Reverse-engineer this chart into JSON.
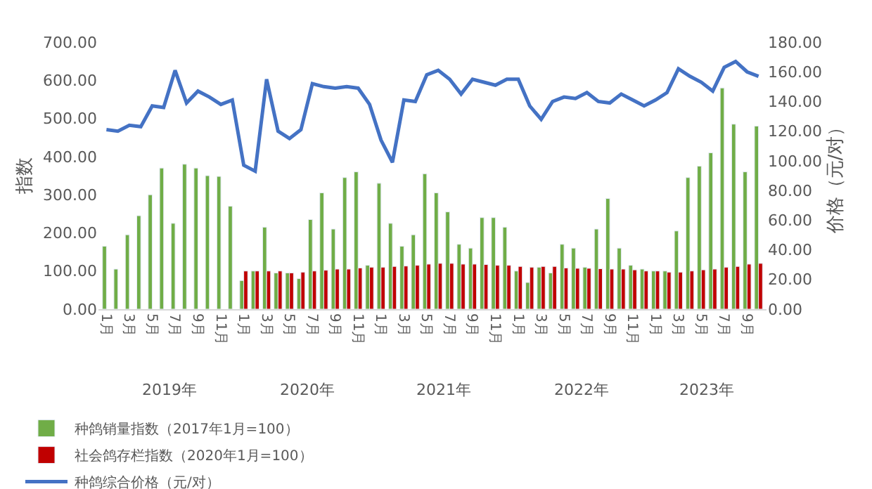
{
  "chart_data": {
    "type": "bar",
    "ylabel": "指数",
    "y2label": "价格（元/对）",
    "categories": [
      "1月",
      null,
      "3月",
      null,
      "5月",
      null,
      "7月",
      null,
      "9月",
      null,
      "11月",
      null,
      "1月",
      null,
      "3月",
      null,
      "5月",
      null,
      "7月",
      null,
      "9月",
      null,
      "11月",
      null,
      "1月",
      null,
      "3月",
      null,
      "5月",
      null,
      "7月",
      null,
      "9月",
      null,
      "11月",
      null,
      "1月",
      null,
      "3月",
      null,
      "5月",
      null,
      "7月",
      null,
      "9月",
      null,
      "11月",
      null,
      "1月",
      null,
      "3月",
      null,
      "5月",
      null,
      "7月",
      null,
      "9月",
      null
    ],
    "annotations": [
      "2019年",
      "2020年",
      "2021年",
      "2022年",
      "2023年"
    ],
    "series": [
      {
        "name": "种鸽销量指数（2017年1月=100）",
        "color": "#70ad47",
        "values": [
          165,
          105,
          195,
          245,
          300,
          370,
          225,
          380,
          370,
          350,
          348,
          270,
          75,
          100,
          215,
          95,
          95,
          80,
          235,
          305,
          210,
          345,
          360,
          115,
          330,
          225,
          165,
          195,
          355,
          305,
          255,
          170,
          160,
          240,
          240,
          215,
          100,
          70,
          110,
          95,
          170,
          160,
          110,
          210,
          290,
          160,
          115,
          105,
          100,
          100,
          205,
          345,
          375,
          410,
          580,
          485,
          360,
          480
        ]
      },
      {
        "name": "社会鸽存栏指数（2020年1月=100）",
        "color": "#c00000",
        "values": [
          null,
          null,
          null,
          null,
          null,
          null,
          null,
          null,
          null,
          null,
          null,
          null,
          100,
          100,
          100,
          100,
          95,
          97,
          100,
          102,
          105,
          105,
          108,
          110,
          110,
          112,
          113,
          115,
          118,
          120,
          120,
          118,
          118,
          117,
          115,
          115,
          112,
          110,
          112,
          112,
          108,
          107,
          107,
          106,
          105,
          105,
          103,
          100,
          100,
          97,
          97,
          100,
          103,
          105,
          110,
          112,
          118,
          120
        ]
      },
      {
        "name": "种鸽综合价格（元/对）",
        "type": "line",
        "axis": "y2",
        "color": "#4472c4",
        "values": [
          121,
          120,
          124,
          123,
          137,
          136,
          161,
          139,
          147,
          143,
          138,
          141,
          97,
          93,
          155,
          120,
          115,
          121,
          152,
          150,
          149,
          150,
          149,
          138,
          114,
          99,
          141,
          140,
          158,
          161,
          155,
          145,
          155,
          153,
          151,
          155,
          155,
          137,
          128,
          140,
          143,
          142,
          146,
          140,
          139,
          145,
          141,
          137,
          141,
          146,
          162,
          157,
          153,
          147,
          163,
          167,
          160,
          157
        ]
      }
    ],
    "ylim": [
      0,
      700
    ],
    "yticks": [
      {
        "value": 0,
        "label": "0.00"
      },
      {
        "value": 100,
        "label": "100.00"
      },
      {
        "value": 200,
        "label": "200.00"
      },
      {
        "value": 300,
        "label": "300.00"
      },
      {
        "value": 400,
        "label": "400.00"
      },
      {
        "value": 500,
        "label": "500.00"
      },
      {
        "value": 600,
        "label": "600.00"
      },
      {
        "value": 700,
        "label": "700.00"
      }
    ],
    "y2lim": [
      0,
      180
    ],
    "y2ticks": [
      {
        "value": 0,
        "label": "0.00"
      },
      {
        "value": 20,
        "label": "20.00"
      },
      {
        "value": 40,
        "label": "40.00"
      },
      {
        "value": 60,
        "label": "60.00"
      },
      {
        "value": 80,
        "label": "80.00"
      },
      {
        "value": 100,
        "label": "100.00"
      },
      {
        "value": 120,
        "label": "120.00"
      },
      {
        "value": 140,
        "label": "140.00"
      },
      {
        "value": 160,
        "label": "160.00"
      },
      {
        "value": 180,
        "label": "180.00"
      }
    ],
    "legend": "bottom"
  }
}
